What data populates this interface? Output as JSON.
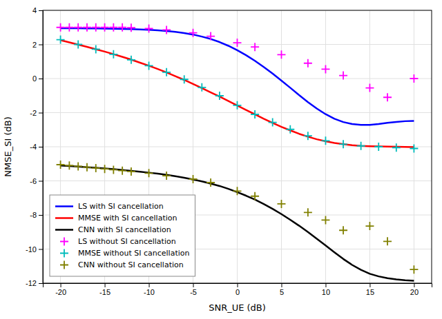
{
  "chart_data": {
    "type": "line",
    "x_label": "SNR_UE (dB)",
    "y_label": "NMSE_SI (dB)",
    "xlim": [
      -22,
      22
    ],
    "ylim": [
      -12,
      4
    ],
    "xticks": [
      -20,
      -15,
      -10,
      -5,
      0,
      5,
      10,
      15,
      20
    ],
    "yticks": [
      -12,
      -10,
      -8,
      -6,
      -4,
      -2,
      0,
      2,
      4
    ],
    "grid": true,
    "legend": "lower left",
    "series": [
      {
        "name": "LS with SI cancellation",
        "type": "line",
        "color": "#0000ff",
        "x": [
          -20,
          -19,
          -18,
          -17,
          -16,
          -15,
          -14,
          -13,
          -12,
          -11,
          -10,
          -9,
          -8,
          -7,
          -6,
          -5,
          -4,
          -3,
          -2,
          -1,
          0,
          1,
          2,
          3,
          4,
          5,
          6,
          7,
          8,
          9,
          10,
          11,
          12,
          13,
          14,
          15,
          16,
          17,
          18,
          19,
          20
        ],
        "values": [
          2.95,
          2.95,
          2.95,
          2.94,
          2.94,
          2.93,
          2.92,
          2.91,
          2.9,
          2.88,
          2.86,
          2.83,
          2.79,
          2.74,
          2.67,
          2.58,
          2.46,
          2.32,
          2.14,
          1.92,
          1.66,
          1.37,
          1.04,
          0.68,
          0.29,
          -0.12,
          -0.54,
          -0.97,
          -1.38,
          -1.76,
          -2.09,
          -2.36,
          -2.55,
          -2.67,
          -2.72,
          -2.72,
          -2.67,
          -2.6,
          -2.55,
          -2.5,
          -2.48
        ]
      },
      {
        "name": "MMSE with SI cancellation",
        "type": "line",
        "color": "#ff0000",
        "x": [
          -20,
          -19,
          -18,
          -17,
          -16,
          -15,
          -14,
          -13,
          -12,
          -11,
          -10,
          -9,
          -8,
          -7,
          -6,
          -5,
          -4,
          -3,
          -2,
          -1,
          0,
          1,
          2,
          3,
          4,
          5,
          6,
          7,
          8,
          9,
          10,
          11,
          12,
          13,
          14,
          15,
          16,
          17,
          18,
          19,
          20
        ],
        "values": [
          2.25,
          2.12,
          1.99,
          1.86,
          1.72,
          1.58,
          1.43,
          1.27,
          1.11,
          0.93,
          0.75,
          0.56,
          0.36,
          0.14,
          -0.08,
          -0.32,
          -0.56,
          -0.81,
          -1.06,
          -1.32,
          -1.58,
          -1.84,
          -2.1,
          -2.36,
          -2.6,
          -2.83,
          -3.04,
          -3.24,
          -3.41,
          -3.56,
          -3.68,
          -3.78,
          -3.85,
          -3.91,
          -3.95,
          -3.97,
          -3.98,
          -3.99,
          -4.0,
          -4.01,
          -4.02
        ]
      },
      {
        "name": "CNN with SI cancellation",
        "type": "line",
        "color": "#000000",
        "x": [
          -20,
          -19,
          -18,
          -17,
          -16,
          -15,
          -14,
          -13,
          -12,
          -11,
          -10,
          -9,
          -8,
          -7,
          -6,
          -5,
          -4,
          -3,
          -2,
          -1,
          0,
          1,
          2,
          3,
          4,
          5,
          6,
          7,
          8,
          9,
          10,
          11,
          12,
          13,
          14,
          15,
          16,
          17,
          18,
          19,
          20
        ],
        "values": [
          -5.1,
          -5.13,
          -5.16,
          -5.2,
          -5.23,
          -5.27,
          -5.31,
          -5.36,
          -5.41,
          -5.46,
          -5.52,
          -5.58,
          -5.65,
          -5.73,
          -5.82,
          -5.92,
          -6.03,
          -6.16,
          -6.3,
          -6.47,
          -6.66,
          -6.87,
          -7.1,
          -7.36,
          -7.64,
          -7.95,
          -8.28,
          -8.63,
          -9.0,
          -9.39,
          -9.79,
          -10.19,
          -10.58,
          -10.93,
          -11.22,
          -11.45,
          -11.6,
          -11.71,
          -11.78,
          -11.83,
          -11.86
        ]
      },
      {
        "name": "LS without SI cancellation",
        "type": "scatter",
        "marker": "plus",
        "color": "#ff00ff",
        "x": [
          -20,
          -19,
          -18,
          -17,
          -16,
          -15,
          -14,
          -13,
          -12,
          -10,
          -8,
          -5,
          -3,
          0,
          2,
          5,
          8,
          10,
          12,
          15,
          17,
          20
        ],
        "values": [
          3.0,
          3.0,
          3.0,
          3.0,
          3.0,
          3.0,
          3.0,
          3.0,
          2.98,
          2.93,
          2.85,
          2.68,
          2.48,
          2.1,
          1.85,
          1.4,
          0.9,
          0.55,
          0.18,
          -0.55,
          -1.1,
          0.0
        ]
      },
      {
        "name": "MMSE without SI cancellation",
        "type": "scatter",
        "marker": "plus",
        "color": "#00bbbb",
        "x": [
          -20,
          -18,
          -16,
          -14,
          -12,
          -10,
          -8,
          -6,
          -4,
          -2,
          0,
          2,
          4,
          6,
          8,
          10,
          12,
          14,
          16,
          18,
          20
        ],
        "values": [
          2.28,
          2.0,
          1.72,
          1.42,
          1.1,
          0.75,
          0.37,
          -0.05,
          -0.52,
          -1.01,
          -1.57,
          -2.1,
          -2.57,
          -2.98,
          -3.36,
          -3.65,
          -3.85,
          -3.95,
          -4.0,
          -4.05,
          -4.1
        ]
      },
      {
        "name": "CNN without SI cancellation",
        "type": "scatter",
        "marker": "plus",
        "color": "#808000",
        "x": [
          -20,
          -19,
          -18,
          -17,
          -16,
          -15,
          -14,
          -13,
          -12,
          -10,
          -8,
          -5,
          -3,
          0,
          2,
          5,
          8,
          10,
          12,
          15,
          17,
          20
        ],
        "values": [
          -5.05,
          -5.1,
          -5.15,
          -5.2,
          -5.25,
          -5.3,
          -5.35,
          -5.4,
          -5.45,
          -5.55,
          -5.7,
          -5.9,
          -6.1,
          -6.6,
          -6.9,
          -7.35,
          -7.85,
          -8.3,
          -8.9,
          -8.65,
          -9.55,
          -11.2
        ]
      }
    ]
  }
}
